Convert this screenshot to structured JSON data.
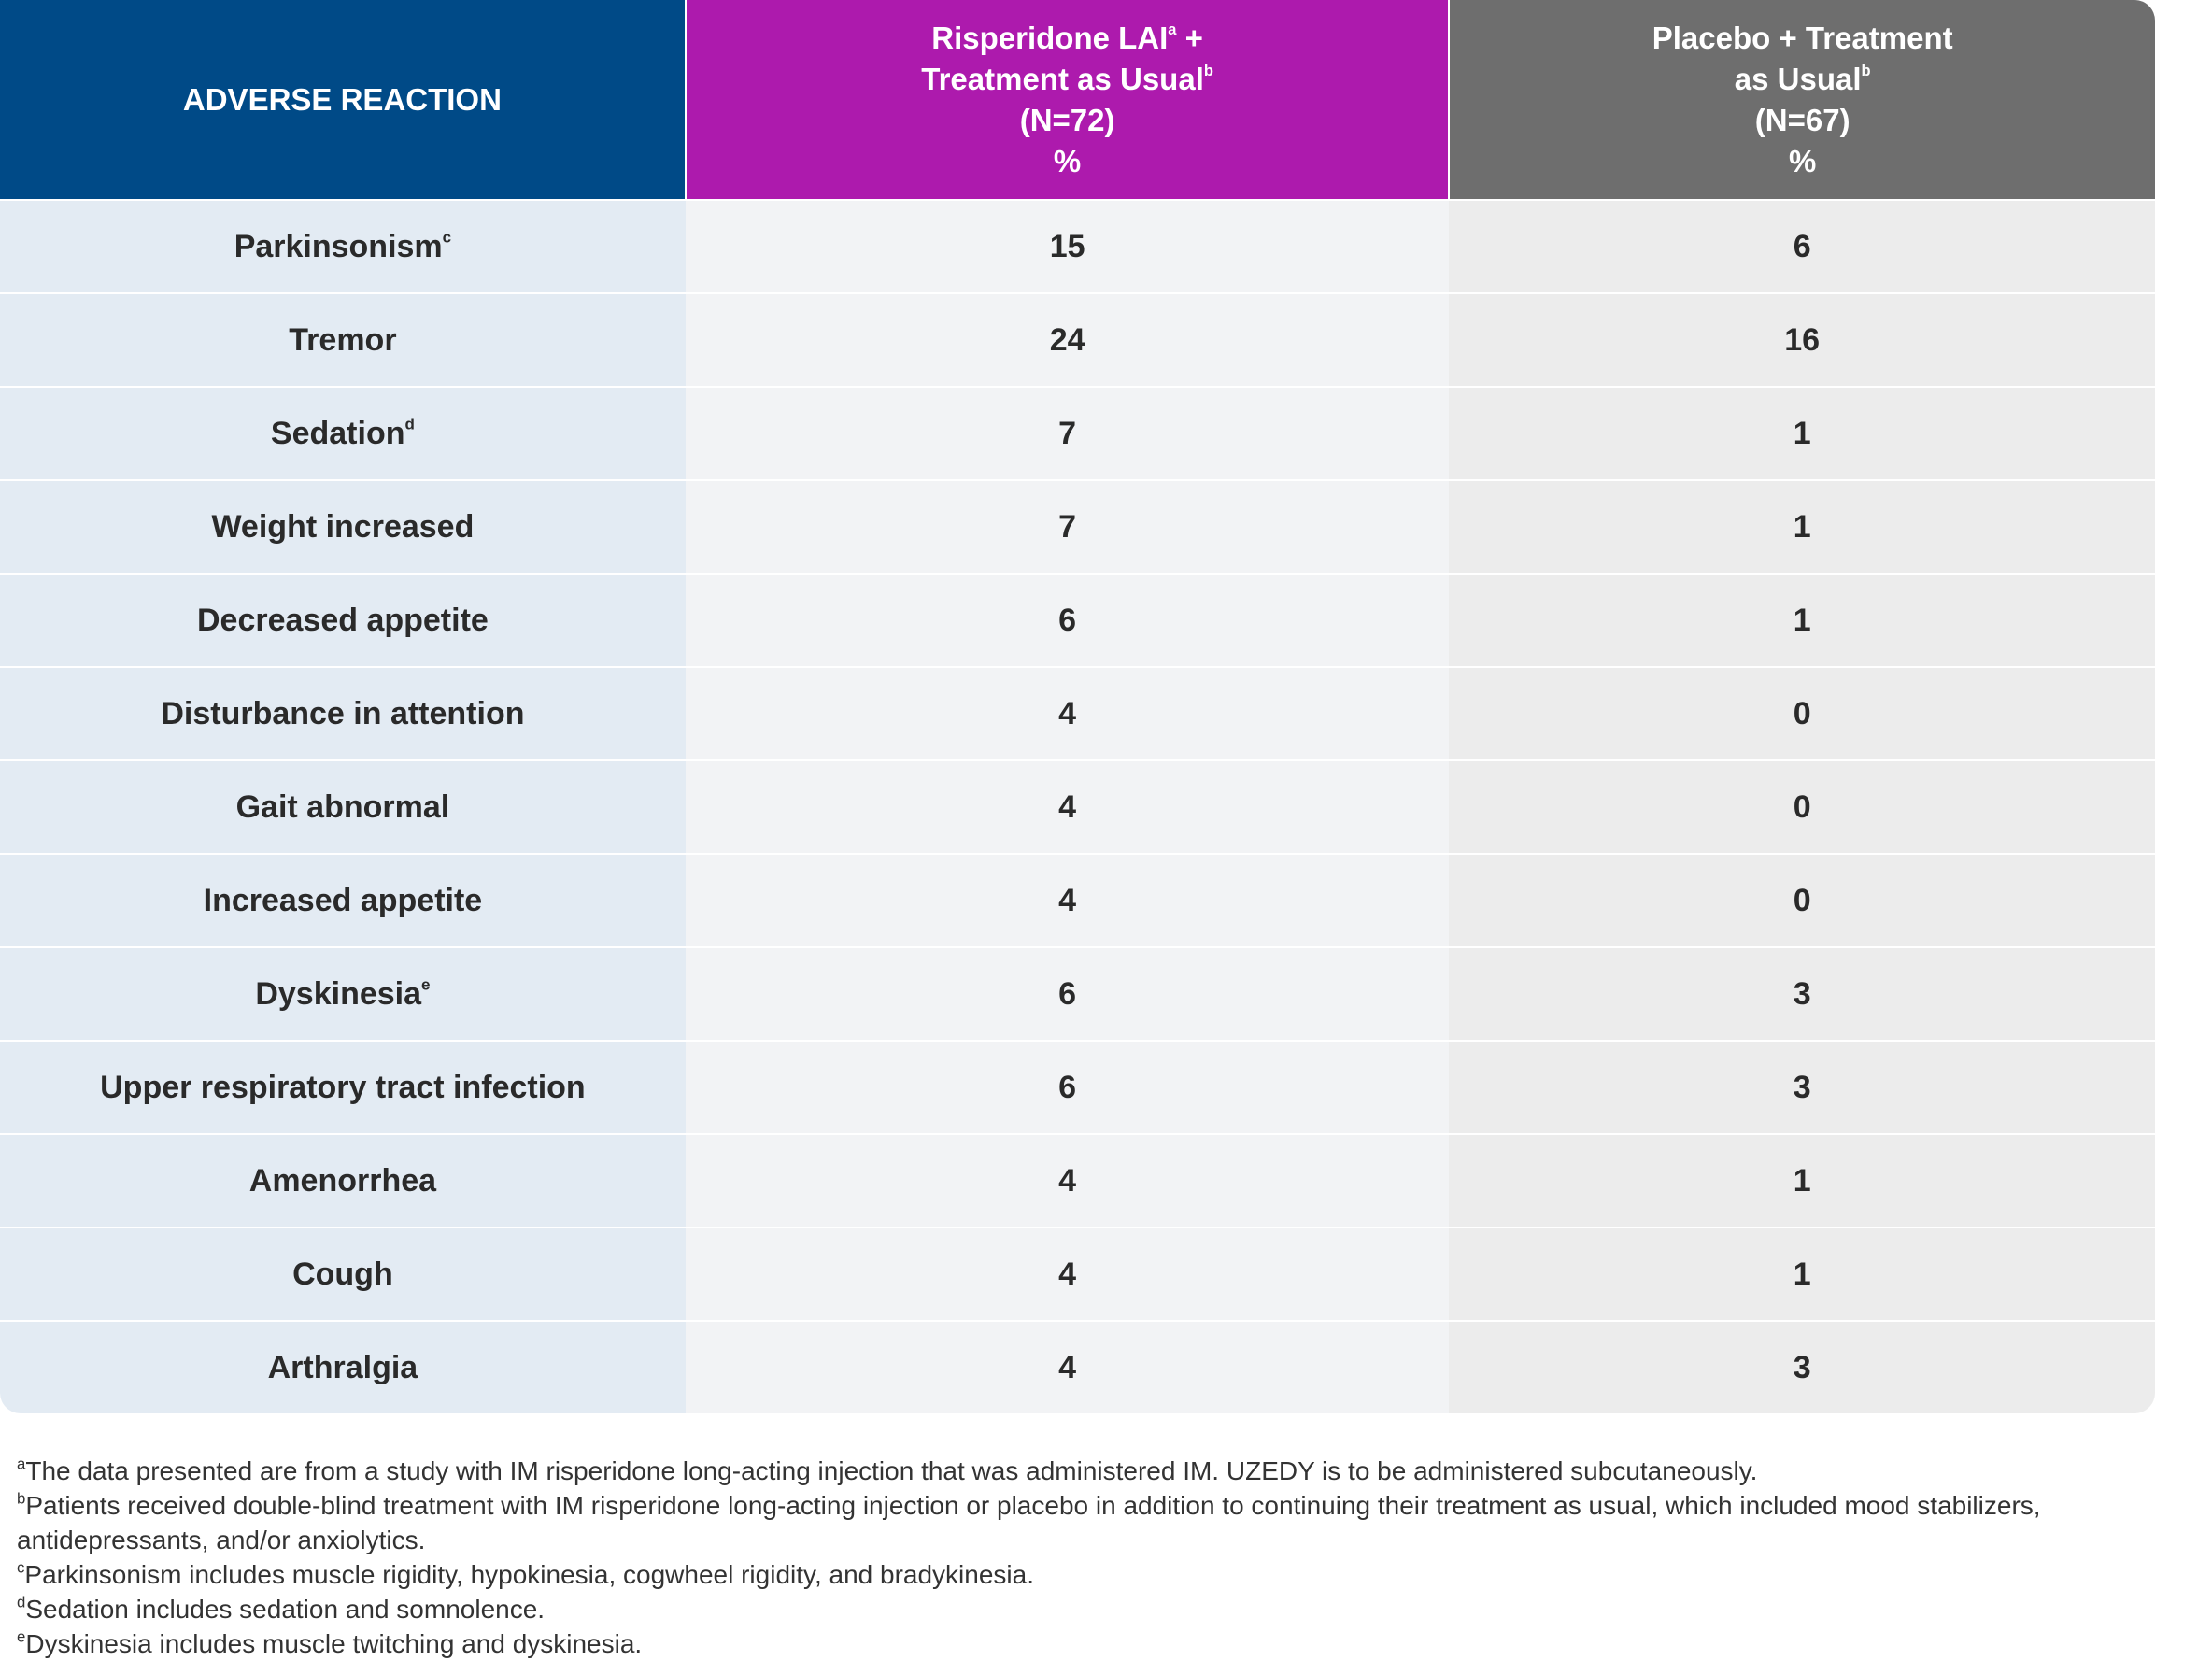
{
  "table": {
    "header": [
      [
        [
          "ADVERSE REACTION"
        ]
      ],
      [
        [
          "Risperidone LAI",
          {
            "sup": "a"
          },
          " +"
        ],
        [
          "Treatment as Usual",
          {
            "sup": "b"
          }
        ],
        [
          "(N=72)"
        ],
        [
          "%"
        ]
      ],
      [
        [
          "Placebo + Treatment"
        ],
        [
          "as Usual",
          {
            "sup": "b"
          }
        ],
        [
          "(N=67)"
        ],
        [
          "%"
        ]
      ]
    ],
    "rows": [
      {
        "reaction": "Parkinsonism",
        "note": "c",
        "values": [
          15,
          6
        ]
      },
      {
        "reaction": "Tremor",
        "values": [
          24,
          16
        ]
      },
      {
        "reaction": "Sedation",
        "note": "d",
        "values": [
          7,
          1
        ]
      },
      {
        "reaction": "Weight increased",
        "values": [
          7,
          1
        ]
      },
      {
        "reaction": "Decreased appetite",
        "values": [
          6,
          1
        ]
      },
      {
        "reaction": "Disturbance in attention",
        "values": [
          4,
          0
        ]
      },
      {
        "reaction": "Gait abnormal",
        "values": [
          4,
          0
        ]
      },
      {
        "reaction": "Increased appetite",
        "values": [
          4,
          0
        ]
      },
      {
        "reaction": "Dyskinesia",
        "note": "e",
        "values": [
          6,
          3
        ]
      },
      {
        "reaction": "Upper respiratory tract infection",
        "values": [
          6,
          3
        ]
      },
      {
        "reaction": "Amenorrhea",
        "values": [
          4,
          1
        ]
      },
      {
        "reaction": "Cough",
        "values": [
          4,
          1
        ]
      },
      {
        "reaction": "Arthralgia",
        "values": [
          4,
          3
        ]
      }
    ]
  },
  "footnotes": [
    {
      "mark": "a",
      "text": "The data presented are from a study with IM risperidone long-acting injection that was administered IM. UZEDY is to be administered subcutaneously."
    },
    {
      "mark": "b",
      "text": "Patients received double-blind treatment with IM risperidone long-acting injection or placebo in addition to continuing their treatment as usual, which included mood stabilizers, antidepressants, and/or anxiolytics."
    },
    {
      "mark": "c",
      "text": "Parkinsonism includes muscle rigidity, hypokinesia, cogwheel rigidity, and bradykinesia."
    },
    {
      "mark": "d",
      "text": "Sedation includes sedation and somnolence."
    },
    {
      "mark": "e",
      "text": "Dyskinesia includes muscle twitching and dyskinesia."
    }
  ]
}
